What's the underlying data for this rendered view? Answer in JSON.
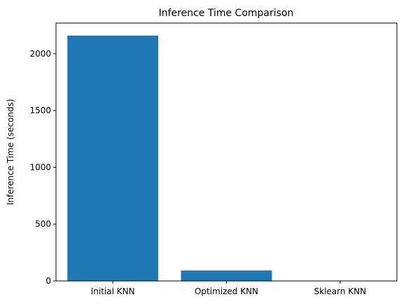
{
  "chart_data": {
    "type": "bar",
    "title": "Inference Time Comparison",
    "xlabel": "",
    "ylabel": "Inference Time (seconds)",
    "categories": [
      "Initial KNN",
      "Optimized KNN",
      "Sklearn KNN"
    ],
    "values": [
      2160,
      92,
      1
    ],
    "ylim": [
      0,
      2270
    ],
    "yticks": [
      0,
      500,
      1000,
      1500,
      2000
    ],
    "bar_color": "#1f77b4",
    "grid": false,
    "legend": "none"
  }
}
